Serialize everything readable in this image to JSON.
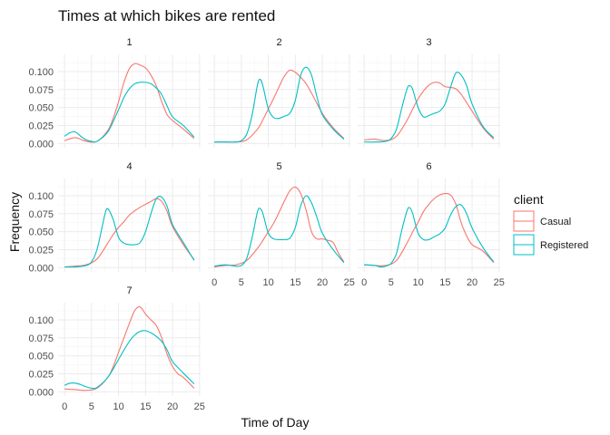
{
  "chart_data": {
    "type": "line",
    "subtype": "density",
    "title": "Times at which bikes are rented",
    "xlabel": "Time of Day",
    "ylabel": "Frequency",
    "xlim": [
      0,
      24
    ],
    "ylim": [
      0,
      0.118
    ],
    "x_ticks": [
      0,
      5,
      10,
      15,
      20,
      25
    ],
    "y_ticks": [
      0.0,
      0.025,
      0.05,
      0.075,
      0.1
    ],
    "y_tick_labels": [
      "0.000",
      "0.025",
      "0.050",
      "0.075",
      "0.100"
    ],
    "grid": true,
    "legend": {
      "title": "client",
      "position": "right",
      "entries": [
        {
          "name": "Casual",
          "color": "#F8766D"
        },
        {
          "name": "Registered",
          "color": "#00BFC4"
        }
      ]
    },
    "facets": [
      {
        "label": "1",
        "series": [
          {
            "name": "Casual",
            "x": [
              0,
              2,
              4,
              6,
              8,
              9,
              10,
              11,
              12,
              13,
              14,
              15,
              16,
              17,
              18,
              19,
              20,
              21,
              22,
              24
            ],
            "y": [
              0.004,
              0.008,
              0.003,
              0.003,
              0.018,
              0.035,
              0.058,
              0.085,
              0.104,
              0.111,
              0.109,
              0.105,
              0.095,
              0.08,
              0.058,
              0.04,
              0.032,
              0.026,
              0.02,
              0.007
            ]
          },
          {
            "name": "Registered",
            "x": [
              0,
              1,
              2,
              3,
              4,
              5,
              6,
              8,
              10,
              11,
              12,
              13,
              14,
              15,
              16,
              17,
              18,
              19,
              20,
              22,
              24
            ],
            "y": [
              0.01,
              0.015,
              0.016,
              0.01,
              0.005,
              0.003,
              0.003,
              0.016,
              0.047,
              0.064,
              0.076,
              0.083,
              0.085,
              0.085,
              0.083,
              0.077,
              0.068,
              0.052,
              0.037,
              0.025,
              0.009
            ]
          }
        ]
      },
      {
        "label": "2",
        "series": [
          {
            "name": "Casual",
            "x": [
              0,
              2,
              4,
              6,
              8,
              9,
              10,
              11,
              12,
              13,
              14,
              15,
              16,
              17,
              18,
              20,
              22,
              24
            ],
            "y": [
              0.002,
              0.002,
              0.002,
              0.005,
              0.02,
              0.033,
              0.048,
              0.063,
              0.079,
              0.094,
              0.102,
              0.099,
              0.092,
              0.083,
              0.07,
              0.042,
              0.022,
              0.007
            ]
          },
          {
            "name": "Registered",
            "x": [
              0,
              2,
              4,
              5,
              6,
              7,
              8,
              8.5,
              9,
              10,
              11,
              12,
              13,
              14,
              15,
              16,
              17,
              18,
              19,
              20,
              22,
              24
            ],
            "y": [
              0.002,
              0.002,
              0.002,
              0.004,
              0.013,
              0.04,
              0.082,
              0.089,
              0.08,
              0.048,
              0.036,
              0.035,
              0.038,
              0.042,
              0.06,
              0.095,
              0.106,
              0.095,
              0.065,
              0.04,
              0.02,
              0.006
            ]
          }
        ]
      },
      {
        "label": "3",
        "series": [
          {
            "name": "Casual",
            "x": [
              0,
              2,
              4,
              6,
              8,
              9,
              10,
              11,
              12,
              13,
              14,
              15,
              16,
              17,
              18,
              20,
              22,
              24
            ],
            "y": [
              0.005,
              0.006,
              0.004,
              0.01,
              0.033,
              0.048,
              0.062,
              0.073,
              0.081,
              0.085,
              0.084,
              0.079,
              0.078,
              0.076,
              0.068,
              0.045,
              0.022,
              0.006
            ]
          },
          {
            "name": "Registered",
            "x": [
              0,
              2,
              4,
              5,
              6,
              7,
              8,
              8.5,
              9,
              10,
              11,
              12,
              13,
              14,
              15,
              16,
              17,
              18,
              19,
              20,
              22,
              24
            ],
            "y": [
              0.002,
              0.002,
              0.003,
              0.007,
              0.02,
              0.05,
              0.077,
              0.08,
              0.075,
              0.05,
              0.037,
              0.039,
              0.042,
              0.045,
              0.055,
              0.078,
              0.098,
              0.095,
              0.08,
              0.055,
              0.024,
              0.008
            ]
          }
        ]
      },
      {
        "label": "4",
        "series": [
          {
            "name": "Casual",
            "x": [
              0,
              2,
              4,
              6,
              8,
              9,
              10,
              11,
              12,
              13,
              14,
              15,
              16,
              17,
              18,
              19,
              20,
              22,
              24
            ],
            "y": [
              0.001,
              0.002,
              0.004,
              0.012,
              0.034,
              0.046,
              0.056,
              0.064,
              0.073,
              0.079,
              0.084,
              0.088,
              0.092,
              0.096,
              0.092,
              0.078,
              0.057,
              0.032,
              0.011
            ]
          },
          {
            "name": "Registered",
            "x": [
              0,
              2,
              4,
              5,
              6,
              7,
              7.5,
              8,
              9,
              10,
              11,
              12,
              13,
              14,
              15,
              16,
              17,
              18,
              19,
              20,
              22,
              24
            ],
            "y": [
              0.001,
              0.001,
              0.003,
              0.008,
              0.025,
              0.058,
              0.075,
              0.082,
              0.067,
              0.042,
              0.034,
              0.032,
              0.032,
              0.035,
              0.05,
              0.075,
              0.096,
              0.098,
              0.085,
              0.06,
              0.035,
              0.01
            ]
          }
        ]
      },
      {
        "label": "5",
        "series": [
          {
            "name": "Casual",
            "x": [
              0,
              2,
              4,
              6,
              8,
              9,
              10,
              11,
              12,
              13,
              14,
              15,
              16,
              17,
              18,
              19,
              20,
              21,
              22,
              23,
              24
            ],
            "y": [
              0.001,
              0.003,
              0.004,
              0.01,
              0.027,
              0.038,
              0.05,
              0.062,
              0.077,
              0.093,
              0.107,
              0.112,
              0.103,
              0.08,
              0.05,
              0.04,
              0.04,
              0.038,
              0.035,
              0.02,
              0.008
            ]
          },
          {
            "name": "Registered",
            "x": [
              0,
              2,
              4,
              5,
              6,
              7,
              8,
              8.5,
              9,
              10,
              11,
              12,
              13,
              14,
              15,
              16,
              17,
              18,
              19,
              20,
              22,
              24
            ],
            "y": [
              0.002,
              0.004,
              0.002,
              0.003,
              0.013,
              0.042,
              0.078,
              0.082,
              0.075,
              0.048,
              0.04,
              0.039,
              0.039,
              0.041,
              0.056,
              0.086,
              0.1,
              0.09,
              0.07,
              0.048,
              0.025,
              0.007
            ]
          }
        ]
      },
      {
        "label": "6",
        "series": [
          {
            "name": "Casual",
            "x": [
              0,
              2,
              4,
              6,
              8,
              9,
              10,
              11,
              12,
              13,
              14,
              15,
              16,
              17,
              18,
              19,
              20,
              22,
              24
            ],
            "y": [
              0.004,
              0.003,
              0.003,
              0.01,
              0.035,
              0.05,
              0.063,
              0.078,
              0.088,
              0.096,
              0.101,
              0.103,
              0.101,
              0.088,
              0.062,
              0.044,
              0.032,
              0.023,
              0.007
            ]
          },
          {
            "name": "Registered",
            "x": [
              0,
              2,
              3,
              4,
              5,
              6,
              7,
              8,
              8.5,
              9,
              10,
              11,
              12,
              13,
              14,
              15,
              16,
              17,
              18,
              19,
              20,
              22,
              24
            ],
            "y": [
              0.004,
              0.003,
              0.001,
              0.002,
              0.006,
              0.02,
              0.053,
              0.08,
              0.083,
              0.075,
              0.048,
              0.039,
              0.039,
              0.043,
              0.047,
              0.055,
              0.073,
              0.085,
              0.087,
              0.075,
              0.055,
              0.028,
              0.008
            ]
          }
        ]
      },
      {
        "label": "7",
        "series": [
          {
            "name": "Casual",
            "x": [
              0,
              2,
              4,
              6,
              8,
              9,
              10,
              11,
              12,
              13,
              14,
              15,
              16,
              17,
              18,
              19,
              20,
              21,
              22,
              24
            ],
            "y": [
              0.004,
              0.003,
              0.002,
              0.005,
              0.02,
              0.035,
              0.055,
              0.075,
              0.095,
              0.113,
              0.118,
              0.108,
              0.1,
              0.092,
              0.075,
              0.052,
              0.035,
              0.025,
              0.02,
              0.005
            ]
          },
          {
            "name": "Registered",
            "x": [
              0,
              1,
              2,
              3,
              4,
              5,
              6,
              8,
              10,
              11,
              12,
              13,
              14,
              15,
              16,
              17,
              18,
              19,
              20,
              22,
              24
            ],
            "y": [
              0.009,
              0.012,
              0.012,
              0.01,
              0.007,
              0.005,
              0.006,
              0.02,
              0.045,
              0.058,
              0.07,
              0.079,
              0.084,
              0.085,
              0.082,
              0.077,
              0.07,
              0.058,
              0.042,
              0.026,
              0.011
            ]
          }
        ]
      }
    ]
  }
}
